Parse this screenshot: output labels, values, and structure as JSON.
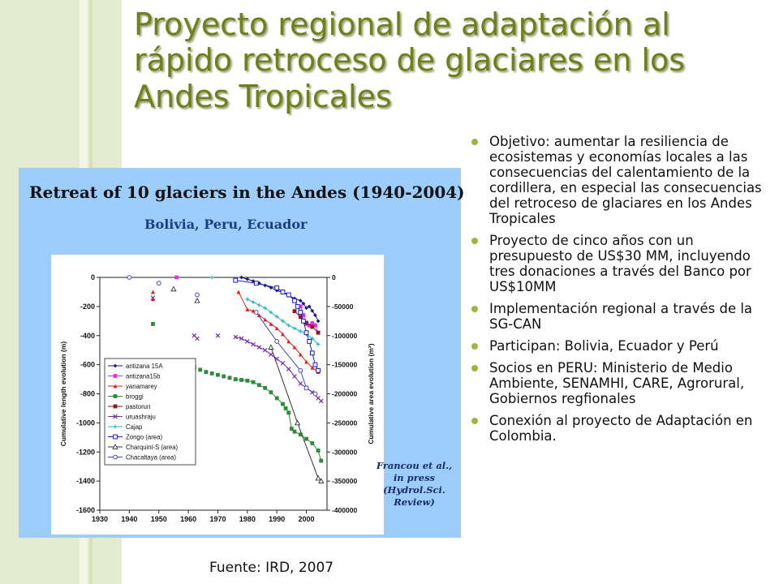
{
  "title": "Proyecto regional de adaptación al rápido retroceso de glaciares en los Andes Tropicales",
  "bullets": [
    "Objetivo:  aumentar la resiliencia de ecosistemas y economías locales a las consecuencias del calentamiento de la cordillera, en especial las consecuencias del retroceso de glaciares en los Andes Tropicales",
    "Proyecto de cinco años con un presupuesto de US$30 MM, incluyendo tres donaciones a través del Banco por US$10MM",
    "Implementación regional a través de la SG-CAN",
    "Participan: Bolivia, Ecuador y Perú",
    "Socios en PERU: Ministerio de Medio Ambiente, SENAMHI, CARE, Agrorural, Gobiernos regfionales",
    "Conexión al proyecto de Adaptación en Colombia."
  ],
  "source": "Fuente: IRD, 2007",
  "citation": [
    "Francou et al.,",
    "in press (Hydrol.Sci.",
    "Review)"
  ],
  "colors": {
    "title": "#6f7f1a",
    "bullet": "#a2b23a",
    "panel": "#9ccdfb",
    "band": "#e5ebcf"
  },
  "chart_data": {
    "type": "scatter",
    "title": "Retreat of 10 glaciers in the Andes  (1940-2004)",
    "subtitle": "Bolivia, Peru, Ecuador",
    "xlabel": "",
    "ylabel": "Cumulative length evolution  (m)",
    "y2label": "Cumulative area evolution (m²)",
    "xlim": [
      1930,
      2007
    ],
    "ylim": [
      -1600,
      0
    ],
    "y2lim": [
      -400000,
      0
    ],
    "x_ticks": [
      "1930",
      "1940",
      "1950",
      "1960",
      "1970",
      "1980",
      "1990",
      "2000"
    ],
    "y_ticks": [
      "0",
      "-200",
      "-400",
      "-600",
      "-800",
      "-1000",
      "-1200",
      "-1400",
      "-1600"
    ],
    "y2_ticks": [
      "0",
      "-50000",
      "-100000",
      "-150000",
      "-200000",
      "-250000",
      "-300000",
      "-350000",
      "-400000"
    ],
    "legend_position": "left",
    "series": [
      {
        "name": "antizana 15A",
        "color": "#1b1b7a",
        "marker": "diamond",
        "axis": "left",
        "points": [
          [
            1978,
            0
          ],
          [
            1980,
            -12
          ],
          [
            1982,
            -25
          ],
          [
            1984,
            -40
          ],
          [
            1986,
            -55
          ],
          [
            1988,
            -70
          ],
          [
            1990,
            -90
          ],
          [
            1992,
            -105
          ],
          [
            1994,
            -125
          ],
          [
            1996,
            -145
          ],
          [
            1998,
            -160
          ],
          [
            1999,
            -180
          ],
          [
            2000,
            -210
          ],
          [
            2001,
            -200
          ],
          [
            2002,
            -230
          ],
          [
            2003,
            -260
          ],
          [
            2004,
            -300
          ]
        ]
      },
      {
        "name": "antizana15b",
        "color": "#e62ee6",
        "marker": "square",
        "axis": "left",
        "points": [
          [
            1956,
            0
          ],
          [
            1998,
            -200
          ],
          [
            1999,
            -260
          ],
          [
            2000,
            -320
          ],
          [
            2001,
            -330
          ],
          [
            2002,
            -315
          ],
          [
            2003,
            -330
          ],
          [
            2004,
            -380
          ]
        ]
      },
      {
        "name": "yanamarey",
        "color": "#e01b1b",
        "marker": "triangle",
        "axis": "left",
        "points": [
          [
            1948,
            -100
          ],
          [
            1948,
            -150
          ],
          [
            1977,
            -100
          ],
          [
            1980,
            -220
          ],
          [
            1982,
            -230
          ],
          [
            1984,
            -260
          ],
          [
            1986,
            -290
          ],
          [
            1988,
            -320
          ],
          [
            1990,
            -350
          ],
          [
            1992,
            -390
          ],
          [
            1994,
            -440
          ],
          [
            1996,
            -480
          ],
          [
            1998,
            -530
          ],
          [
            2000,
            -580
          ],
          [
            2002,
            -620
          ],
          [
            2004,
            -650
          ]
        ]
      },
      {
        "name": "broggi",
        "color": "#2e8b3a",
        "marker": "square",
        "axis": "left",
        "points": [
          [
            1948,
            -320
          ],
          [
            1962,
            -620
          ],
          [
            1964,
            -635
          ],
          [
            1966,
            -650
          ],
          [
            1968,
            -660
          ],
          [
            1970,
            -670
          ],
          [
            1972,
            -680
          ],
          [
            1974,
            -690
          ],
          [
            1976,
            -700
          ],
          [
            1978,
            -705
          ],
          [
            1980,
            -710
          ],
          [
            1982,
            -720
          ],
          [
            1984,
            -740
          ],
          [
            1986,
            -760
          ],
          [
            1988,
            -790
          ],
          [
            1990,
            -830
          ],
          [
            1992,
            -870
          ],
          [
            1993,
            -900
          ],
          [
            1994,
            -930
          ],
          [
            1995,
            -1040
          ],
          [
            1996,
            -1060
          ],
          [
            1998,
            -1080
          ],
          [
            2000,
            -1110
          ],
          [
            2002,
            -1140
          ],
          [
            2004,
            -1190
          ],
          [
            2005,
            -1260
          ]
        ]
      },
      {
        "name": "pastoruri",
        "color": "#8b1a1a",
        "marker": "square",
        "axis": "right",
        "points": [
          [
            1996,
            -58000
          ],
          [
            1998,
            -68000
          ],
          [
            2000,
            -78000
          ],
          [
            2002,
            -85000
          ],
          [
            2004,
            -95000
          ]
        ]
      },
      {
        "name": "uruashraju",
        "color": "#7a2ea8",
        "marker": "cross",
        "axis": "left",
        "points": [
          [
            1948,
            -140
          ],
          [
            1962,
            -400
          ],
          [
            1963,
            -420
          ],
          [
            1970,
            -400
          ],
          [
            1976,
            -410
          ],
          [
            1978,
            -420
          ],
          [
            1980,
            -440
          ],
          [
            1982,
            -460
          ],
          [
            1984,
            -480
          ],
          [
            1986,
            -500
          ],
          [
            1988,
            -530
          ],
          [
            1990,
            -560
          ],
          [
            1992,
            -590
          ],
          [
            1994,
            -630
          ],
          [
            1996,
            -680
          ],
          [
            1998,
            -730
          ],
          [
            2000,
            -760
          ],
          [
            2002,
            -790
          ],
          [
            2004,
            -830
          ],
          [
            2005,
            -850
          ]
        ]
      },
      {
        "name": "Cajap",
        "color": "#27b8b8",
        "marker": "plus",
        "axis": "left",
        "points": [
          [
            1968,
            0
          ],
          [
            1980,
            -150
          ],
          [
            1982,
            -170
          ],
          [
            1984,
            -190
          ],
          [
            1986,
            -210
          ],
          [
            1988,
            -240
          ],
          [
            1990,
            -270
          ],
          [
            1992,
            -300
          ],
          [
            1994,
            -330
          ],
          [
            1996,
            -350
          ],
          [
            1998,
            -370
          ],
          [
            2000,
            -390
          ],
          [
            2002,
            -420
          ],
          [
            2004,
            -460
          ]
        ]
      },
      {
        "name": "Zongo (area)",
        "color": "#1a1ad6",
        "marker": "square_open",
        "axis": "right",
        "points": [
          [
            1976,
            -5000
          ],
          [
            1983,
            -10000
          ],
          [
            1990,
            -18000
          ],
          [
            1992,
            -25000
          ],
          [
            1994,
            -30000
          ],
          [
            1996,
            -40000
          ],
          [
            1997,
            -50000
          ],
          [
            1998,
            -60000
          ],
          [
            1999,
            -75000
          ],
          [
            2000,
            -95000
          ],
          [
            2001,
            -110000
          ],
          [
            2002,
            -130000
          ],
          [
            2003,
            -150000
          ],
          [
            2004,
            -160000
          ]
        ]
      },
      {
        "name": "Charquini-S (area)",
        "color": "#333333",
        "marker": "triangle_open",
        "axis": "right",
        "points": [
          [
            1955,
            -20000
          ],
          [
            1963,
            -40000
          ],
          [
            1988,
            -120000
          ],
          [
            1997,
            -250000
          ],
          [
            2004,
            -345000
          ],
          [
            2005,
            -350000
          ]
        ]
      },
      {
        "name": "Chacaltaya (area)",
        "color": "#4646d6",
        "marker": "circle_open",
        "axis": "right",
        "points": [
          [
            1940,
            0
          ],
          [
            1950,
            -10000
          ],
          [
            1963,
            -30000
          ],
          [
            1983,
            -60000
          ],
          [
            1990,
            -110000
          ],
          [
            1998,
            -160000
          ],
          [
            2000,
            -190000
          ],
          [
            2003,
            -200000
          ]
        ]
      }
    ]
  }
}
